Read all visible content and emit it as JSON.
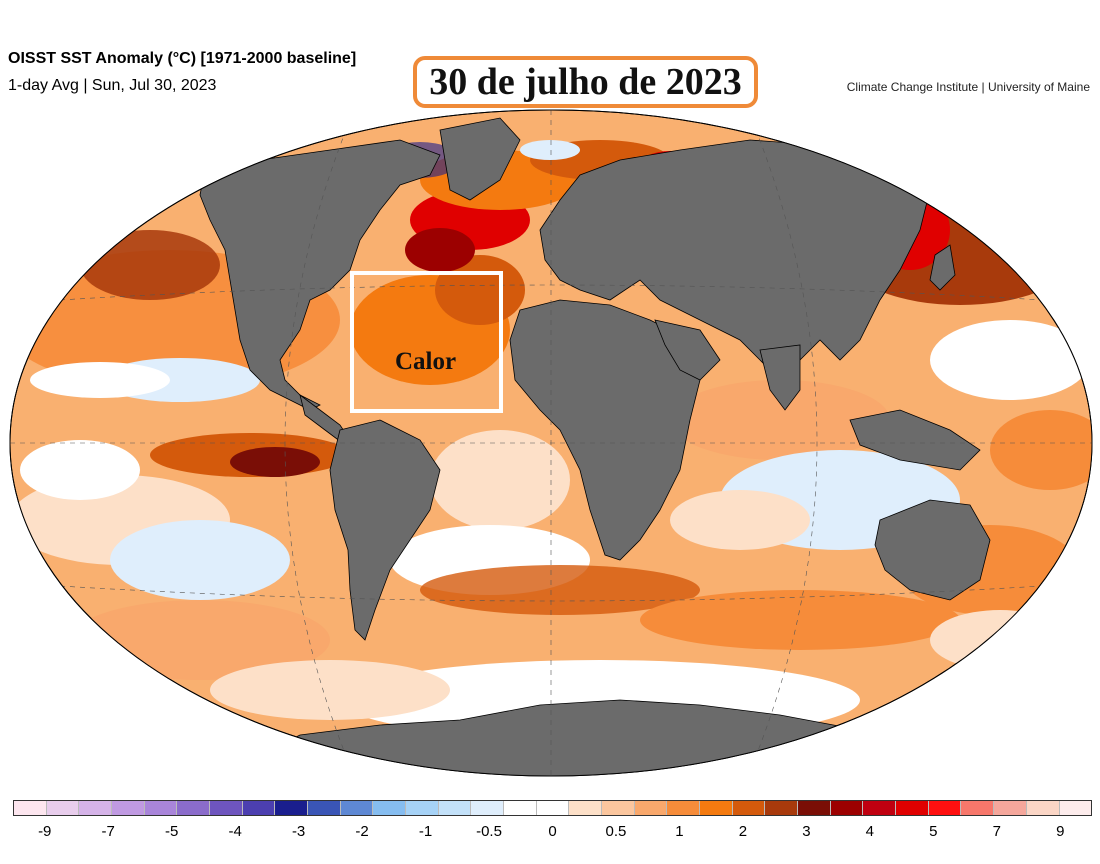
{
  "header": {
    "title": "OISST SST Anomaly (°C) [1971-2000 baseline]",
    "subtitle": "1-day Avg | Sun, Jul 30, 2023",
    "credit": "Climate Change Institute | University of Maine",
    "date_banner": "30 de julho de 2023"
  },
  "map": {
    "annotation_label": "Calor",
    "ocean_base_color": "#f6a35c",
    "land_color": "#6b6b6b",
    "projection": "Robinson-like ellipse"
  },
  "colorbar": {
    "tick_labels": [
      "-9",
      "-7",
      "-5",
      "-4",
      "-3",
      "-2",
      "-1",
      "-0.5",
      "0",
      "0.5",
      "1",
      "2",
      "3",
      "4",
      "5",
      "7",
      "9"
    ],
    "colors": [
      "#fde6ef",
      "#e8cdec",
      "#d5b3e8",
      "#c09ae2",
      "#a985da",
      "#8b6ccb",
      "#6e55be",
      "#4c3fb0",
      "#1a1e8e",
      "#3a55b6",
      "#5e88d4",
      "#86bdf0",
      "#a6d2f6",
      "#c3e1f9",
      "#dfeefc",
      "#ffffff",
      "#ffffff",
      "#fde0c8",
      "#fbc69e",
      "#f9a86c",
      "#f68c3a",
      "#f47a10",
      "#d45a0c",
      "#a83a0c",
      "#7a0e06",
      "#9c0000",
      "#c00010",
      "#e00000",
      "#ff1010",
      "#f7776b",
      "#f5a79c",
      "#fbd6c6",
      "#fdecec"
    ]
  }
}
